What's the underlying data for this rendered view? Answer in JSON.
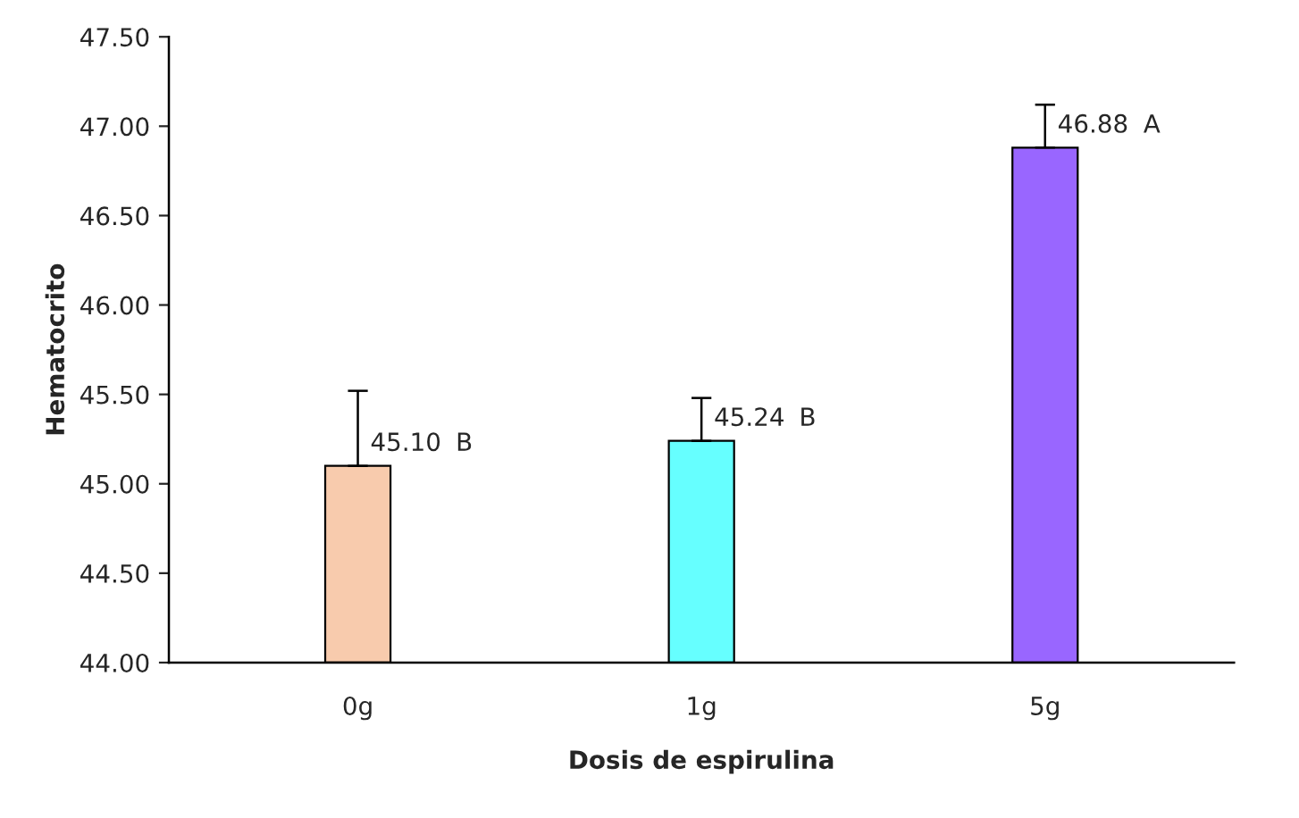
{
  "chart_data": {
    "type": "bar",
    "xlabel": "Dosis de espirulina",
    "ylabel": "Hematocrito",
    "categories": [
      "0g",
      "1g",
      "5g"
    ],
    "values": [
      45.1,
      45.24,
      46.88
    ],
    "colors": [
      "#f8cbad",
      "#66ffff",
      "#9966ff"
    ],
    "errors": [
      [
        45.1,
        45.52
      ],
      [
        45.24,
        45.48
      ],
      [
        46.88,
        47.12
      ]
    ],
    "value_labels": [
      "45.10",
      "45.24",
      "46.88"
    ],
    "annotations": [
      "B",
      "B",
      "A"
    ],
    "ylim": [
      44.0,
      47.5
    ],
    "yticks": [
      {
        "value": 44.0,
        "label": "44.00"
      },
      {
        "value": 44.5,
        "label": "44.50"
      },
      {
        "value": 45.0,
        "label": "45.00"
      },
      {
        "value": 45.5,
        "label": "45.50"
      },
      {
        "value": 46.0,
        "label": "46.00"
      },
      {
        "value": 46.5,
        "label": "46.50"
      },
      {
        "value": 47.0,
        "label": "47.00"
      },
      {
        "value": 47.5,
        "label": "47.50"
      }
    ],
    "grid": false,
    "legend": false
  }
}
